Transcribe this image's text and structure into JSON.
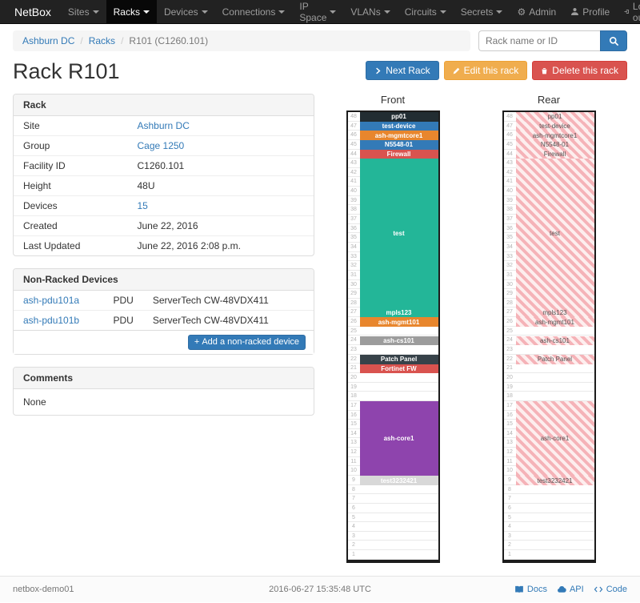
{
  "navbar": {
    "brand": "NetBox",
    "items": [
      {
        "label": "Sites"
      },
      {
        "label": "Racks",
        "active": true
      },
      {
        "label": "Devices"
      },
      {
        "label": "Connections"
      },
      {
        "label": "IP Space"
      },
      {
        "label": "VLANs"
      },
      {
        "label": "Circuits"
      },
      {
        "label": "Secrets"
      }
    ],
    "right": [
      {
        "icon": "gear-icon",
        "label": "Admin"
      },
      {
        "icon": "user-icon",
        "label": "Profile"
      },
      {
        "icon": "logout-icon",
        "label": "Log out"
      }
    ]
  },
  "breadcrumb": {
    "items": [
      {
        "label": "Ashburn DC",
        "link": true
      },
      {
        "label": "Racks",
        "link": true
      },
      {
        "label": "R101 (C1260.101)",
        "link": false
      }
    ]
  },
  "search": {
    "placeholder": "Rack name or ID"
  },
  "actions": {
    "next": "Next Rack",
    "edit": "Edit this rack",
    "delete": "Delete this rack"
  },
  "page_title": "Rack R101",
  "rack_panel": {
    "title": "Rack",
    "rows": [
      {
        "label": "Site",
        "value": "Ashburn DC",
        "link": true
      },
      {
        "label": "Group",
        "value": "Cage 1250",
        "link": true
      },
      {
        "label": "Facility ID",
        "value": "C1260.101",
        "link": false
      },
      {
        "label": "Height",
        "value": "48U",
        "link": false
      },
      {
        "label": "Devices",
        "value": "15",
        "link": true
      },
      {
        "label": "Created",
        "value": "June 22, 2016",
        "link": false
      },
      {
        "label": "Last Updated",
        "value": "June 22, 2016 2:08 p.m.",
        "link": false
      }
    ]
  },
  "nonracked_panel": {
    "title": "Non-Racked Devices",
    "rows": [
      {
        "name": "ash-pdu101a",
        "role": "PDU",
        "type": "ServerTech CW-48VDX411"
      },
      {
        "name": "ash-pdu101b",
        "role": "PDU",
        "type": "ServerTech CW-48VDX411"
      }
    ],
    "add_button": "Add a non-racked device"
  },
  "comments_panel": {
    "title": "Comments",
    "body": "None"
  },
  "elevation": {
    "front_title": "Front",
    "rear_title": "Rear",
    "units": 48,
    "devices": [
      {
        "name": "pp01",
        "top_unit": 48,
        "height": 1,
        "color": "#222d32",
        "rear": true
      },
      {
        "name": "test-device",
        "top_unit": 47,
        "height": 1,
        "color": "#337ab7",
        "rear": true
      },
      {
        "name": "ash-mgmtcore1",
        "top_unit": 46,
        "height": 1,
        "color": "#e8862d",
        "rear": true
      },
      {
        "name": "N5548-01",
        "top_unit": 45,
        "height": 1,
        "color": "#337ab7",
        "rear": true
      },
      {
        "name": "Firewall",
        "top_unit": 44,
        "height": 1,
        "color": "#d9534f",
        "rear": true
      },
      {
        "name": "test",
        "top_unit": 43,
        "height": 16,
        "color": "#23b698",
        "rear": true
      },
      {
        "name": "mpls123",
        "top_unit": 27,
        "height": 1,
        "color": "#23b698",
        "rear": true
      },
      {
        "name": "ash-mgmt101",
        "top_unit": 26,
        "height": 1,
        "color": "#e8862d",
        "rear": true
      },
      {
        "name": "ash-cs101",
        "top_unit": 24,
        "height": 1,
        "color": "#9c9c9c",
        "rear": true
      },
      {
        "name": "Patch Panel",
        "top_unit": 22,
        "height": 1,
        "color": "#374249",
        "rear": true
      },
      {
        "name": "Fortinet FW",
        "top_unit": 21,
        "height": 1,
        "color": "#d9534f",
        "rear": false
      },
      {
        "name": "ash-core1",
        "top_unit": 17,
        "height": 8,
        "color": "#8e44ad",
        "rear": true
      },
      {
        "name": "test3232421",
        "top_unit": 9,
        "height": 1,
        "color": "#d8d8d8",
        "rear": true
      }
    ]
  },
  "footer": {
    "hostname": "netbox-demo01",
    "timestamp": "2016-06-27 15:35:48 UTC",
    "links": [
      {
        "icon": "docs-icon",
        "label": "Docs"
      },
      {
        "icon": "cloud-icon",
        "label": "API"
      },
      {
        "icon": "code-icon",
        "label": "Code"
      }
    ]
  }
}
